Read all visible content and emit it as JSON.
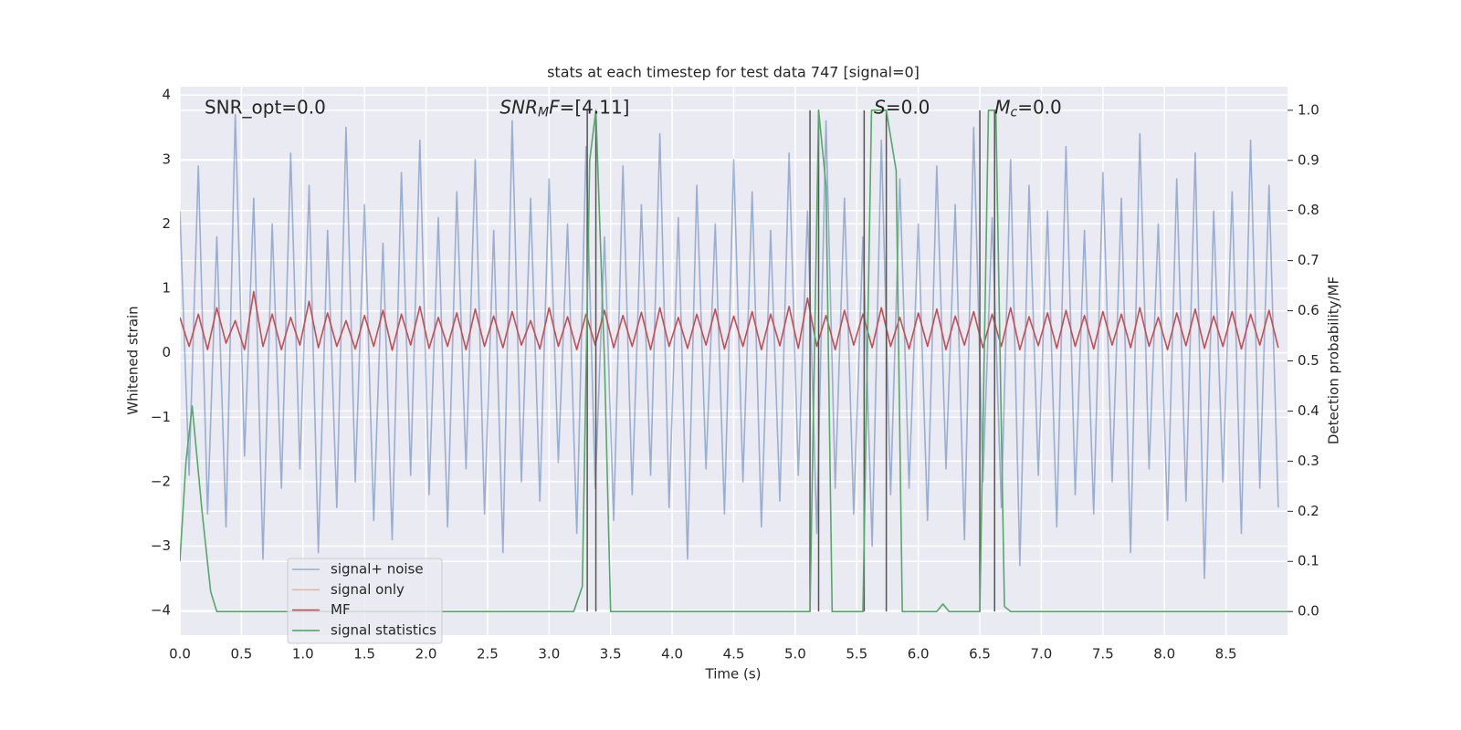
{
  "chart_data": {
    "type": "line",
    "title": "stats at each timestep for test data 747 [signal=0]",
    "xlabel": "Time (s)",
    "ylabel": "Whitened strain",
    "y2label": "Detection probability/MF",
    "xlim": [
      0,
      9.0
    ],
    "ylim": [
      -4.38,
      4.13
    ],
    "y2lim": [
      -0.047,
      1.047
    ],
    "xticks": [
      {
        "value": 0,
        "label": "0.0"
      },
      {
        "value": 0.5,
        "label": "0.5"
      },
      {
        "value": 1,
        "label": "1.0"
      },
      {
        "value": 1.5,
        "label": "1.5"
      },
      {
        "value": 2,
        "label": "2.0"
      },
      {
        "value": 2.5,
        "label": "2.5"
      },
      {
        "value": 3,
        "label": "3.0"
      },
      {
        "value": 3.5,
        "label": "3.5"
      },
      {
        "value": 4,
        "label": "4.0"
      },
      {
        "value": 4.5,
        "label": "4.5"
      },
      {
        "value": 5,
        "label": "5.0"
      },
      {
        "value": 5.5,
        "label": "5.5"
      },
      {
        "value": 6,
        "label": "6.0"
      },
      {
        "value": 6.5,
        "label": "6.5"
      },
      {
        "value": 7,
        "label": "7.0"
      },
      {
        "value": 7.5,
        "label": "7.5"
      },
      {
        "value": 8,
        "label": "8.0"
      },
      {
        "value": 8.5,
        "label": "8.5"
      }
    ],
    "yticks": [
      {
        "value": -4,
        "label": "−4"
      },
      {
        "value": -3,
        "label": "−3"
      },
      {
        "value": -2,
        "label": "−2"
      },
      {
        "value": -1,
        "label": "−1"
      },
      0,
      1,
      2,
      3,
      4
    ],
    "y2ticks": [
      {
        "value": 0,
        "label": "0.0"
      },
      {
        "value": 0.1,
        "label": "0.1"
      },
      {
        "value": 0.2,
        "label": "0.2"
      },
      {
        "value": 0.3,
        "label": "0.3"
      },
      {
        "value": 0.4,
        "label": "0.4"
      },
      {
        "value": 0.5,
        "label": "0.5"
      },
      {
        "value": 0.6,
        "label": "0.6"
      },
      {
        "value": 0.7,
        "label": "0.7"
      },
      {
        "value": 0.8,
        "label": "0.8"
      },
      {
        "value": 0.9,
        "label": "0.9"
      },
      {
        "value": 1,
        "label": "1.0"
      }
    ],
    "grid": true,
    "legend": "lower left",
    "series": [
      {
        "name": "signal+ noise",
        "color": "#4c72b0",
        "opacity": 0.5,
        "x": [
          0,
          0.075,
          0.15,
          0.225,
          0.3,
          0.375,
          0.45,
          0.525,
          0.6,
          0.675,
          0.75,
          0.825,
          0.9,
          0.975,
          1.05,
          1.125,
          1.2,
          1.275,
          1.35,
          1.425,
          1.5,
          1.575,
          1.65,
          1.725,
          1.8,
          1.875,
          1.95,
          2.025,
          2.1,
          2.175,
          2.25,
          2.325,
          2.4,
          2.475,
          2.55,
          2.625,
          2.7,
          2.775,
          2.85,
          2.925,
          3,
          3.075,
          3.15,
          3.225,
          3.3,
          3.375,
          3.45,
          3.525,
          3.6,
          3.675,
          3.75,
          3.825,
          3.9,
          3.975,
          4.05,
          4.125,
          4.2,
          4.275,
          4.35,
          4.425,
          4.5,
          4.575,
          4.65,
          4.725,
          4.8,
          4.875,
          4.95,
          5.025,
          5.1,
          5.175,
          5.25,
          5.325,
          5.4,
          5.475,
          5.55,
          5.625,
          5.7,
          5.775,
          5.85,
          5.925,
          6,
          6.075,
          6.15,
          6.225,
          6.3,
          6.375,
          6.45,
          6.525,
          6.6,
          6.675,
          6.75,
          6.825,
          6.9,
          6.975,
          7.05,
          7.125,
          7.2,
          7.275,
          7.35,
          7.425,
          7.5,
          7.575,
          7.65,
          7.725,
          7.8,
          7.875,
          7.95,
          8.025,
          8.1,
          8.175,
          8.25,
          8.325,
          8.4,
          8.475,
          8.55,
          8.625,
          8.7,
          8.775,
          8.85,
          8.925
        ],
        "values": [
          2.2,
          -1.9,
          2.9,
          -2.5,
          1.8,
          -2.7,
          3.7,
          -1.6,
          2.4,
          -3.2,
          2.0,
          -2.1,
          3.1,
          -1.8,
          2.6,
          -3.1,
          1.9,
          -2.4,
          3.5,
          -2.0,
          2.3,
          -2.6,
          1.7,
          -2.9,
          2.8,
          -1.9,
          3.3,
          -2.2,
          2.1,
          -2.7,
          2.5,
          -1.8,
          3.0,
          -2.5,
          1.9,
          -3.1,
          3.6,
          -2.0,
          2.4,
          -2.3,
          2.7,
          -1.7,
          2.0,
          -2.8,
          3.2,
          -2.1,
          1.8,
          -2.6,
          2.9,
          -2.2,
          2.3,
          -1.9,
          3.4,
          -2.4,
          2.1,
          -3.2,
          2.6,
          -1.8,
          2.0,
          -2.5,
          3.0,
          -2.0,
          2.5,
          -2.7,
          1.9,
          -2.3,
          3.1,
          -1.9,
          2.2,
          -2.8,
          3.6,
          -2.1,
          2.4,
          -2.5,
          1.8,
          -3.0,
          3.3,
          -2.2,
          2.7,
          -2.1,
          2.0,
          -2.6,
          2.9,
          -1.8,
          2.3,
          -2.9,
          3.5,
          -2.0,
          2.1,
          -2.4,
          3.0,
          -3.3,
          2.6,
          -1.9,
          2.2,
          -2.7,
          3.2,
          -2.2,
          1.9,
          -2.5,
          2.8,
          -2.0,
          2.4,
          -3.1,
          3.4,
          -1.8,
          2.0,
          -2.6,
          2.7,
          -2.3,
          3.1,
          -3.5,
          2.2,
          -2.0,
          2.5,
          -2.8,
          3.3,
          -2.1,
          2.6,
          -2.4
        ]
      },
      {
        "name": "signal only",
        "color": "#dd8452",
        "opacity": 0.5
      },
      {
        "name": "MF",
        "color": "#c44e52",
        "opacity": 1,
        "x": [
          0,
          0.075,
          0.15,
          0.225,
          0.3,
          0.375,
          0.45,
          0.525,
          0.6,
          0.675,
          0.75,
          0.825,
          0.9,
          0.975,
          1.05,
          1.125,
          1.2,
          1.275,
          1.35,
          1.425,
          1.5,
          1.575,
          1.65,
          1.725,
          1.8,
          1.875,
          1.95,
          2.025,
          2.1,
          2.175,
          2.25,
          2.325,
          2.4,
          2.475,
          2.55,
          2.625,
          2.7,
          2.775,
          2.85,
          2.925,
          3,
          3.075,
          3.15,
          3.225,
          3.3,
          3.375,
          3.45,
          3.525,
          3.6,
          3.675,
          3.75,
          3.825,
          3.9,
          3.975,
          4.05,
          4.125,
          4.2,
          4.275,
          4.35,
          4.425,
          4.5,
          4.575,
          4.65,
          4.725,
          4.8,
          4.875,
          4.95,
          5.025,
          5.1,
          5.175,
          5.25,
          5.325,
          5.4,
          5.475,
          5.55,
          5.625,
          5.7,
          5.775,
          5.85,
          5.925,
          6,
          6.075,
          6.15,
          6.225,
          6.3,
          6.375,
          6.45,
          6.525,
          6.6,
          6.675,
          6.75,
          6.825,
          6.9,
          6.975,
          7.05,
          7.125,
          7.2,
          7.275,
          7.35,
          7.425,
          7.5,
          7.575,
          7.65,
          7.725,
          7.8,
          7.875,
          7.95,
          8.025,
          8.1,
          8.175,
          8.25,
          8.325,
          8.4,
          8.475,
          8.55,
          8.625,
          8.7,
          8.775,
          8.85,
          8.925
        ],
        "values": [
          0.55,
          0.1,
          0.6,
          0.05,
          0.7,
          0.15,
          0.5,
          0.05,
          0.95,
          0.1,
          0.6,
          0.05,
          0.55,
          0.12,
          0.8,
          0.08,
          0.62,
          0.1,
          0.5,
          0.06,
          0.58,
          0.1,
          0.66,
          0.04,
          0.6,
          0.12,
          0.72,
          0.07,
          0.55,
          0.1,
          0.62,
          0.05,
          0.68,
          0.1,
          0.57,
          0.08,
          0.64,
          0.12,
          0.5,
          0.06,
          0.7,
          0.1,
          0.56,
          0.05,
          0.6,
          0.12,
          0.66,
          0.08,
          0.58,
          0.1,
          0.63,
          0.05,
          0.7,
          0.1,
          0.55,
          0.07,
          0.6,
          0.12,
          0.68,
          0.06,
          0.57,
          0.1,
          0.64,
          0.05,
          0.6,
          0.11,
          0.72,
          0.07,
          0.85,
          0.1,
          0.58,
          0.05,
          0.66,
          0.12,
          0.6,
          0.08,
          0.7,
          0.1,
          0.55,
          0.06,
          0.62,
          0.1,
          0.68,
          0.05,
          0.57,
          0.12,
          0.64,
          0.08,
          0.6,
          0.1,
          0.7,
          0.05,
          0.56,
          0.11,
          0.62,
          0.07,
          0.66,
          0.1,
          0.58,
          0.06,
          0.64,
          0.12,
          0.6,
          0.08,
          0.7,
          0.1,
          0.55,
          0.05,
          0.62,
          0.11,
          0.68,
          0.07,
          0.57,
          0.1,
          0.64,
          0.06,
          0.6,
          0.12,
          0.66,
          0.08
        ]
      },
      {
        "name": "signal statistics",
        "color": "#55a868",
        "opacity": 1,
        "axis": "y2",
        "x": [
          0,
          0.05,
          0.1,
          0.18,
          0.25,
          0.3,
          3.2,
          3.27,
          3.33,
          3.38,
          3.45,
          3.5,
          5.12,
          5.19,
          5.25,
          5.3,
          5.55,
          5.62,
          5.74,
          5.82,
          5.87,
          6.15,
          6.2,
          6.25,
          6.5,
          6.57,
          6.63,
          6.7,
          6.75,
          9.0
        ],
        "values": [
          0.1,
          0.3,
          0.41,
          0.2,
          0.04,
          0,
          0,
          0.05,
          0.9,
          1.0,
          0.5,
          0,
          0,
          1.0,
          0.85,
          0,
          0,
          1.0,
          1.0,
          0.88,
          0,
          0,
          0.015,
          0,
          0,
          1.0,
          1.0,
          0.01,
          0,
          0
        ]
      }
    ],
    "vlines": {
      "color": "#555555",
      "x": [
        3.31,
        3.38,
        5.12,
        5.19,
        5.56,
        5.74,
        6.5,
        6.62
      ],
      "ymin": 0,
      "ymax": 1
    },
    "annotations": [
      {
        "x": 0.2,
        "y": 3.8,
        "parts": [
          {
            "text": "SNR_opt=0.0"
          }
        ]
      },
      {
        "x": 2.6,
        "y": 3.8,
        "parts": [
          {
            "text": "SNR",
            "italic": true
          },
          {
            "text": "M",
            "italic": true,
            "sub": true
          },
          {
            "text": "F",
            "italic": true
          },
          {
            "text": "=[4.11]"
          }
        ]
      },
      {
        "x": 5.64,
        "y": 3.8,
        "parts": [
          {
            "text": "S",
            "italic": true
          },
          {
            "text": "=0.0"
          }
        ]
      },
      {
        "x": 6.62,
        "y": 3.8,
        "parts": [
          {
            "text": "M",
            "italic": true
          },
          {
            "text": "c",
            "italic": true,
            "sub": true
          },
          {
            "text": "=0.0"
          }
        ]
      }
    ]
  }
}
